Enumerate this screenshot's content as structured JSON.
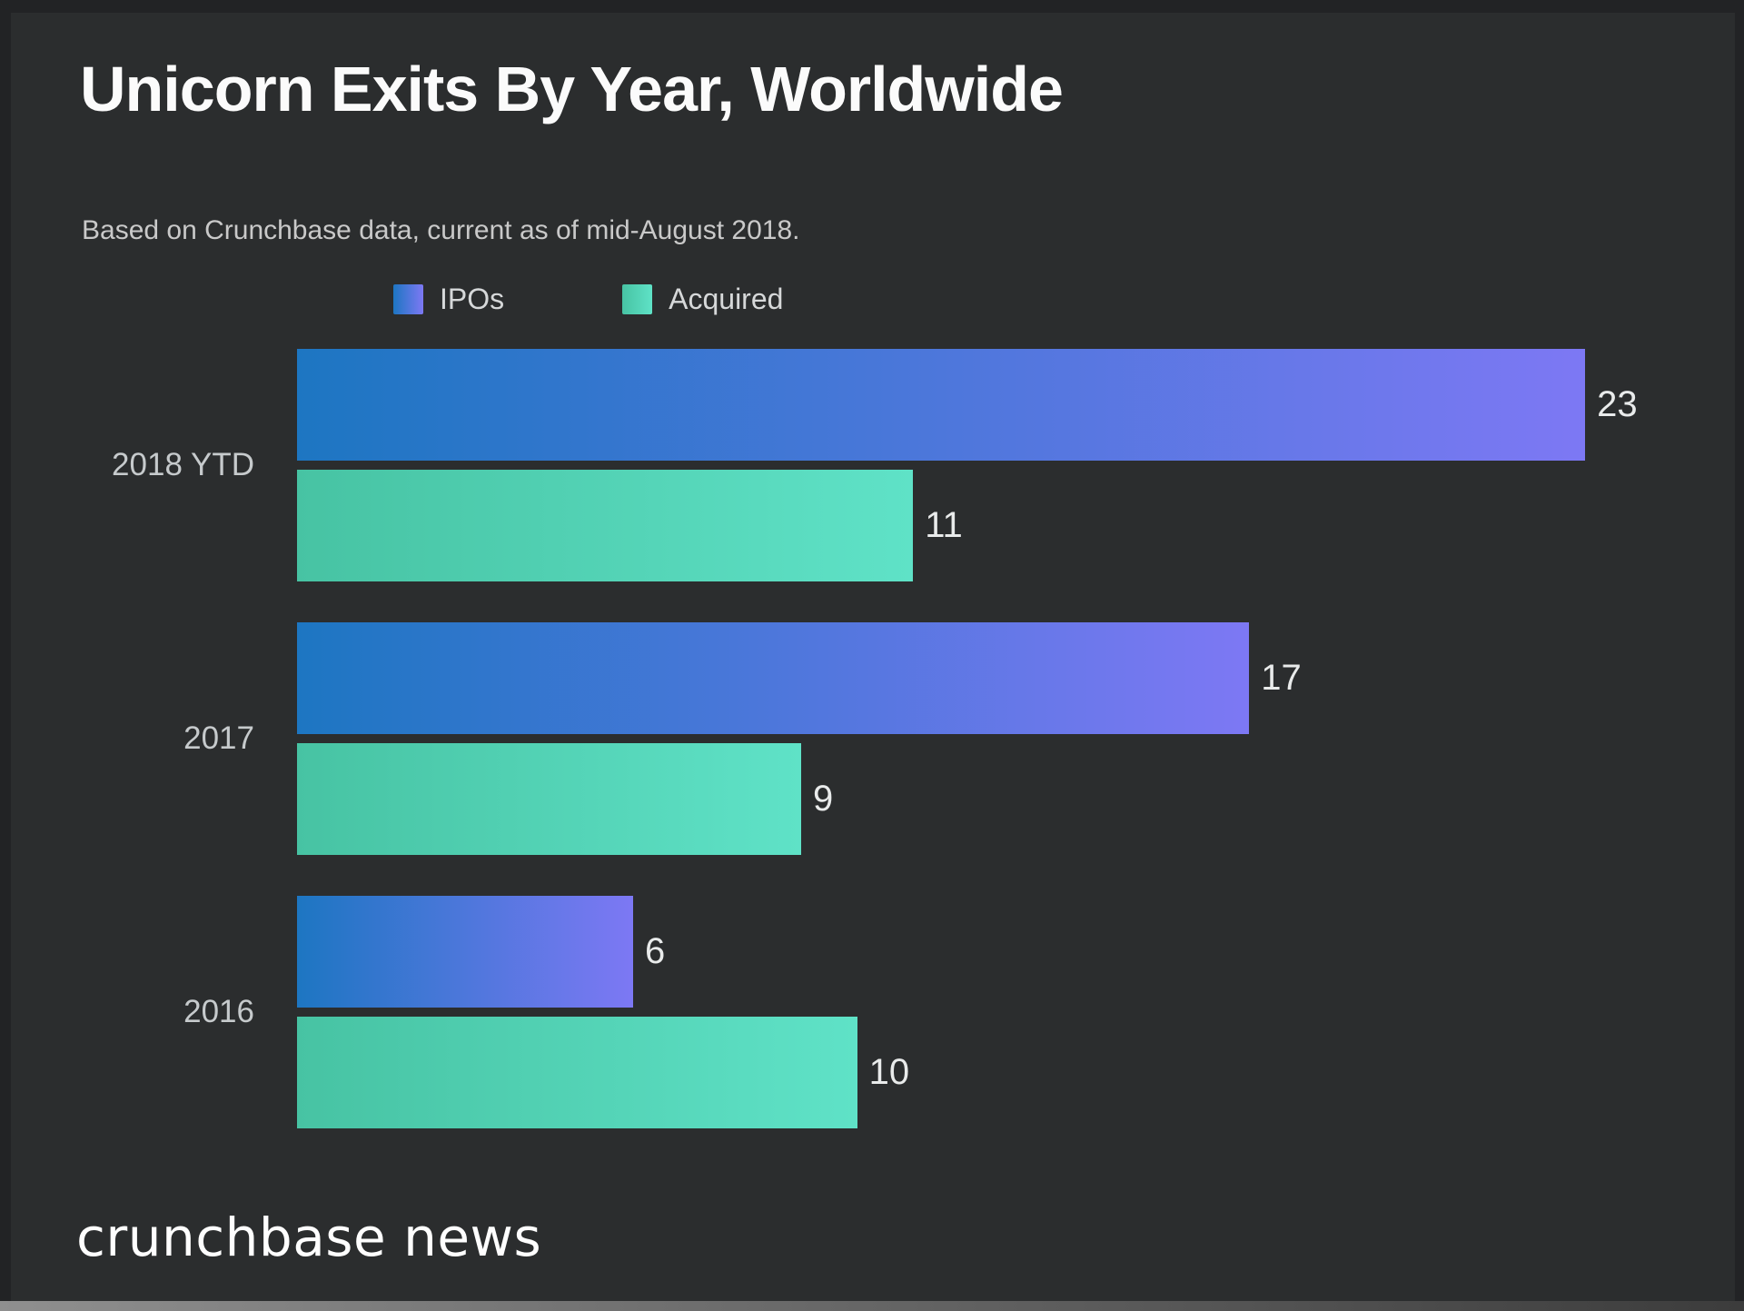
{
  "header": {
    "title": "Unicorn Exits By Year, Worldwide",
    "subtitle": "Based on Crunchbase data, current as of mid-August 2018."
  },
  "legend": {
    "items": [
      {
        "label": "IPOs"
      },
      {
        "label": "Acquired"
      }
    ]
  },
  "chart_data": {
    "type": "bar",
    "orientation": "horizontal",
    "title": "Unicorn Exits By Year, Worldwide",
    "subtitle": "Based on Crunchbase data, current as of mid-August 2018.",
    "categories": [
      "2018 YTD",
      "2017",
      "2016"
    ],
    "series": [
      {
        "name": "IPOs",
        "values": [
          23,
          17,
          6
        ]
      },
      {
        "name": "Acquired",
        "values": [
          11,
          9,
          10
        ]
      }
    ],
    "xlim": [
      0,
      24.7
    ],
    "grid": false,
    "value_labels": true,
    "legend_position": "top"
  },
  "footer": {
    "brand": "crunchbase news"
  },
  "colors": {
    "ipo_start": "#1d76c2",
    "ipo_end": "#7d78f4",
    "acq_start": "#47c3a3",
    "acq_end": "#5fe2c7",
    "panel_bg": "#2b2d2e",
    "outer_bg": "#222325",
    "title_text": "#fbfbfb",
    "muted_text": "#c9c9c9"
  }
}
